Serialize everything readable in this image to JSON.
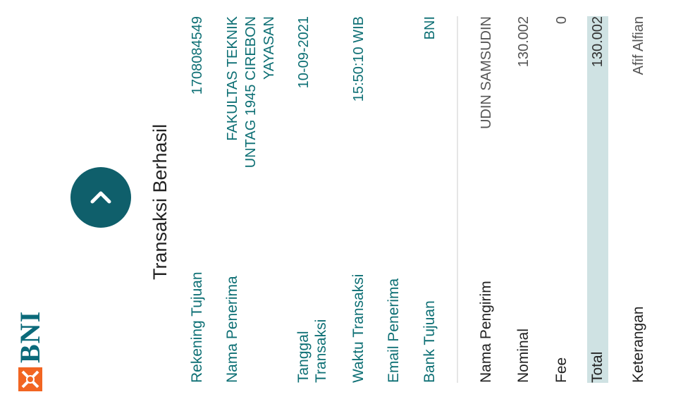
{
  "brand": {
    "name": "BNI"
  },
  "header": {
    "title": "Transaksi Berhasil",
    "status_icon": "chevron-right-icon"
  },
  "details": [
    {
      "label": "Rekening Tujuan",
      "value": "1708084549"
    },
    {
      "label": "Nama Penerima",
      "value": "FAKULTAS TEKNIK UNTAG 1945 CIREBON YAYASAN"
    },
    {
      "label": "Tanggal Transaksi",
      "value": "10-09-2021"
    },
    {
      "label": "Waktu Transaksi",
      "value": "15:50:10 WIB"
    },
    {
      "label": "Email Penerima",
      "value": ""
    },
    {
      "label": "Bank Tujuan",
      "value": "BNI"
    }
  ],
  "sender": {
    "label": "Nama Pengirim",
    "value": "UDIN SAMSUDIN"
  },
  "nominal": {
    "label": "Nominal",
    "value": "130.002"
  },
  "fee": {
    "label": "Fee",
    "value": "0"
  },
  "total": {
    "label": "Total",
    "value": "130.002"
  },
  "note": {
    "label": "Keterangan",
    "value": "Afif Alfian"
  },
  "colors": {
    "brand_teal": "#0d6f74",
    "brand_orange": "#f26522",
    "total_bg": "#cfe2e3"
  }
}
